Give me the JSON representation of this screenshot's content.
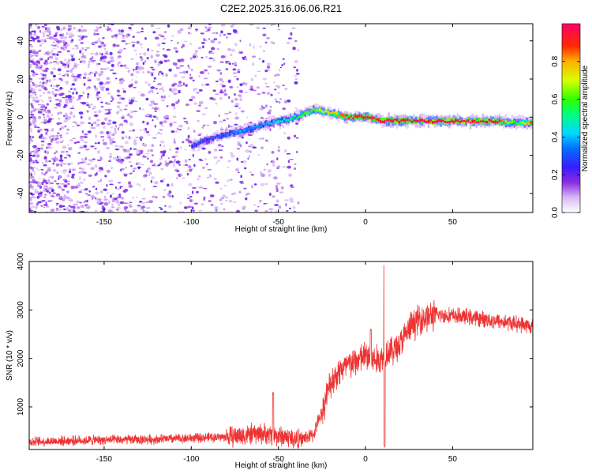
{
  "title": "C2E2.2025.316.06.06.R21",
  "chart_data": [
    {
      "type": "heatmap",
      "name": "spectrogram",
      "xlabel": "Height of straight line (km)",
      "ylabel": "Frequency (Hz)",
      "xlim": [
        -193,
        96
      ],
      "ylim": [
        -50,
        49
      ],
      "xticks": [
        -150,
        -100,
        -50,
        0,
        50
      ],
      "yticks": [
        -40,
        -20,
        0,
        20,
        40
      ],
      "noise_region_x": [
        -193,
        -38
      ],
      "signal_track": [
        {
          "x": -100,
          "y": -15,
          "amp": 0.28
        },
        {
          "x": -85,
          "y": -10,
          "amp": 0.3
        },
        {
          "x": -70,
          "y": -7,
          "amp": 0.38
        },
        {
          "x": -55,
          "y": -3,
          "amp": 0.42
        },
        {
          "x": -40,
          "y": 0,
          "amp": 0.55
        },
        {
          "x": -30,
          "y": 4,
          "amp": 0.62
        },
        {
          "x": -20,
          "y": 2,
          "amp": 0.75
        },
        {
          "x": -10,
          "y": 0,
          "amp": 0.9
        },
        {
          "x": 0,
          "y": 0,
          "amp": 0.9
        },
        {
          "x": 10,
          "y": -2,
          "amp": 0.95
        },
        {
          "x": 50,
          "y": -2,
          "amp": 0.98
        },
        {
          "x": 75,
          "y": -2,
          "amp": 0.98
        },
        {
          "x": 85,
          "y": -3,
          "amp": 0.55
        },
        {
          "x": 96,
          "y": -3,
          "amp": 0.9
        }
      ],
      "colorbar": {
        "label": "Normalized spectral amplitude",
        "range": [
          0,
          1
        ],
        "ticks": [
          "0.0",
          "0.2",
          "0.4",
          "0.6",
          "0.8"
        ]
      }
    },
    {
      "type": "line",
      "name": "snr",
      "xlabel": "Height of straight line (km)",
      "ylabel": "SNR (10 * v/v)",
      "xlim": [
        -193,
        96
      ],
      "ylim": [
        120,
        4000
      ],
      "xticks": [
        -150,
        -100,
        -50,
        0,
        50
      ],
      "yticks": [
        1000,
        2000,
        3000,
        4000
      ],
      "color": "#ee3333",
      "series": [
        {
          "name": "SNR",
          "x": [
            -193,
            -160,
            -120,
            -80,
            -60,
            -45,
            -38,
            -30,
            -25,
            -20,
            -15,
            -10,
            -5,
            0,
            5,
            10,
            12,
            15,
            20,
            25,
            30,
            40,
            50,
            60,
            70,
            80,
            90,
            96
          ],
          "y": [
            280,
            310,
            330,
            380,
            450,
            380,
            320,
            420,
            900,
            1500,
            1750,
            1850,
            1950,
            2050,
            1950,
            2000,
            2150,
            2150,
            2300,
            2600,
            2800,
            2900,
            2880,
            2850,
            2800,
            2750,
            2700,
            2650
          ]
        }
      ],
      "spikes": [
        {
          "x": 10.8,
          "y": 3950
        },
        {
          "x": 10.9,
          "y": 200
        },
        {
          "x": -53,
          "y": 1300
        },
        {
          "x": 3,
          "y": 2600
        }
      ]
    }
  ]
}
